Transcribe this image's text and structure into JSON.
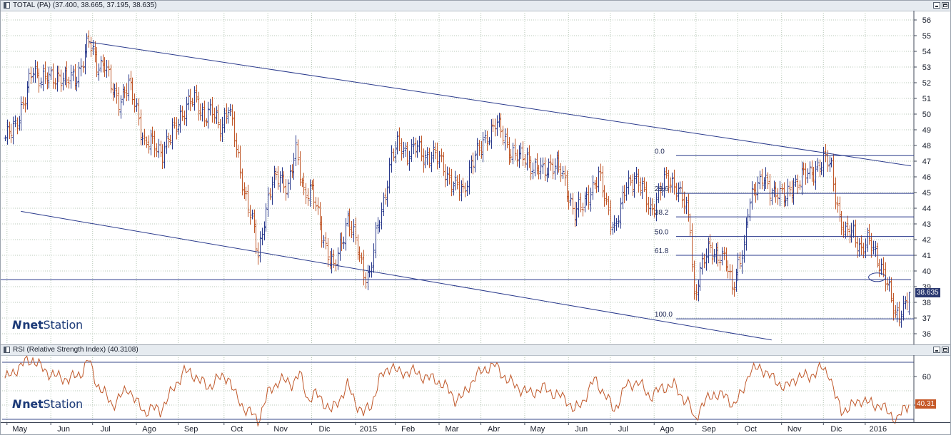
{
  "price_pane": {
    "title": "TOTAL (PA) (37.400, 38.665, 37.195, 38.635)",
    "last_price_label": "38.635",
    "logo": {
      "mark": "N",
      "strong": "net",
      "rest": "Station"
    }
  },
  "rsi_pane": {
    "title": "RSI (Relative Strength Index) (40.3108)",
    "last_value_label": "40.31",
    "logo": {
      "mark": "N",
      "strong": "net",
      "rest": "Station"
    }
  },
  "colors": {
    "up_bar": "#2a3a8c",
    "down_bar": "#c0582a",
    "trend_line": "#2a3a8c",
    "fib_line": "#2a3a8c",
    "rsi_line": "#c0582a",
    "grid": "#b8c8b8",
    "band_line": "#3a4a8a"
  },
  "chart_data": [
    {
      "type": "ohlc",
      "title": "TOTAL (PA)",
      "last_ohlc": {
        "open": 37.4,
        "high": 38.665,
        "low": 37.195,
        "close": 38.635
      },
      "ylim": [
        35.5,
        56.5
      ],
      "yticks": [
        36,
        37,
        38,
        39,
        40,
        41,
        42,
        43,
        44,
        45,
        46,
        47,
        48,
        49,
        50,
        51,
        52,
        53,
        54,
        55,
        56
      ],
      "grid": true,
      "x_labels": [
        "May",
        "Jun",
        "Jul",
        "Ago",
        "Sep",
        "Oct",
        "Nov",
        "Dic",
        "2015",
        "Feb",
        "Mar",
        "Abr",
        "May",
        "Jun",
        "Jul",
        "Ago",
        "Sep",
        "Oct",
        "Nov",
        "Dic",
        "2016"
      ],
      "x_label_index": [
        5,
        27,
        48,
        70,
        91,
        114,
        136,
        158,
        180,
        200,
        222,
        243,
        265,
        287,
        308,
        330,
        351,
        372,
        394,
        415,
        436
      ],
      "bars_total": 455,
      "close_anchors": [
        [
          0,
          48.2
        ],
        [
          5,
          49.5
        ],
        [
          10,
          50.8
        ],
        [
          14,
          53.0
        ],
        [
          18,
          52.3
        ],
        [
          22,
          52.1
        ],
        [
          27,
          52.6
        ],
        [
          31,
          52.0
        ],
        [
          36,
          52.5
        ],
        [
          42,
          54.5
        ],
        [
          46,
          53.3
        ],
        [
          50,
          53.2
        ],
        [
          53,
          51.6
        ],
        [
          57,
          51.0
        ],
        [
          62,
          51.7
        ],
        [
          66,
          50.4
        ],
        [
          70,
          48.1
        ],
        [
          75,
          48.0
        ],
        [
          79,
          47.7
        ],
        [
          83,
          48.4
        ],
        [
          88,
          50.0
        ],
        [
          92,
          50.6
        ],
        [
          96,
          50.9
        ],
        [
          100,
          49.9
        ],
        [
          104,
          50.0
        ],
        [
          108,
          49.3
        ],
        [
          112,
          50.4
        ],
        [
          116,
          47.8
        ],
        [
          120,
          45.2
        ],
        [
          124,
          43.0
        ],
        [
          127,
          41.0
        ],
        [
          130,
          43.5
        ],
        [
          134,
          45.5
        ],
        [
          138,
          46.1
        ],
        [
          142,
          45.4
        ],
        [
          146,
          47.5
        ],
        [
          150,
          45.2
        ],
        [
          154,
          45.0
        ],
        [
          158,
          43.0
        ],
        [
          162,
          41.2
        ],
        [
          165,
          40.0
        ],
        [
          168,
          41.5
        ],
        [
          172,
          43.5
        ],
        [
          176,
          41.7
        ],
        [
          180,
          40.0
        ],
        [
          183,
          39.8
        ],
        [
          186,
          42.0
        ],
        [
          190,
          44.5
        ],
        [
          194,
          47.3
        ],
        [
          198,
          48.0
        ],
        [
          202,
          47.6
        ],
        [
          206,
          47.8
        ],
        [
          210,
          47.3
        ],
        [
          214,
          47.5
        ],
        [
          218,
          47.0
        ],
        [
          222,
          46.2
        ],
        [
          226,
          45.3
        ],
        [
          230,
          45.0
        ],
        [
          234,
          47.0
        ],
        [
          238,
          47.5
        ],
        [
          242,
          48.7
        ],
        [
          246,
          49.4
        ],
        [
          250,
          48.6
        ],
        [
          254,
          47.7
        ],
        [
          258,
          47.1
        ],
        [
          262,
          47.3
        ],
        [
          266,
          46.5
        ],
        [
          270,
          46.2
        ],
        [
          274,
          47.0
        ],
        [
          278,
          46.5
        ],
        [
          282,
          45.2
        ],
        [
          286,
          43.8
        ],
        [
          290,
          44.0
        ],
        [
          294,
          45.3
        ],
        [
          298,
          46.0
        ],
        [
          302,
          44.2
        ],
        [
          306,
          42.8
        ],
        [
          309,
          43.8
        ],
        [
          312,
          45.5
        ],
        [
          316,
          46.1
        ],
        [
          320,
          45.0
        ],
        [
          324,
          44.0
        ],
        [
          328,
          44.8
        ],
        [
          332,
          45.8
        ],
        [
          336,
          45.7
        ],
        [
          340,
          44.5
        ],
        [
          344,
          43.0
        ],
        [
          346,
          38.4
        ],
        [
          348,
          39.5
        ],
        [
          350,
          40.2
        ],
        [
          354,
          41.6
        ],
        [
          358,
          41.0
        ],
        [
          362,
          40.4
        ],
        [
          365,
          39.1
        ],
        [
          368,
          40.5
        ],
        [
          371,
          41.2
        ],
        [
          373,
          43.8
        ],
        [
          376,
          45.5
        ],
        [
          380,
          45.8
        ],
        [
          384,
          45.0
        ],
        [
          388,
          45.3
        ],
        [
          392,
          44.4
        ],
        [
          396,
          45.6
        ],
        [
          400,
          46.1
        ],
        [
          404,
          46.0
        ],
        [
          408,
          46.8
        ],
        [
          412,
          47.0
        ],
        [
          415,
          46.5
        ],
        [
          417,
          45.0
        ],
        [
          419,
          43.5
        ],
        [
          422,
          42.2
        ],
        [
          426,
          42.5
        ],
        [
          430,
          41.4
        ],
        [
          434,
          41.8
        ],
        [
          438,
          41.0
        ],
        [
          441,
          39.9
        ],
        [
          444,
          38.5
        ],
        [
          447,
          37.3
        ],
        [
          450,
          37.6
        ],
        [
          452,
          37.8
        ],
        [
          454,
          38.635
        ]
      ],
      "trend_lines": [
        {
          "from": [
            42,
            54.6
          ],
          "to": [
            455,
            46.7
          ]
        },
        {
          "from": [
            8,
            43.8
          ],
          "to": [
            385,
            35.6
          ]
        },
        {
          "from": [
            -5,
            39.45
          ],
          "to": [
            455,
            39.45
          ]
        }
      ],
      "fibonacci": {
        "anchor_index_start": 337,
        "anchor_index_end": 455,
        "levels": [
          {
            "label": "0.0",
            "value": 47.35
          },
          {
            "label": "23.6",
            "value": 44.95
          },
          {
            "label": "38.2",
            "value": 43.45
          },
          {
            "label": "50.0",
            "value": 42.2
          },
          {
            "label": "61.8",
            "value": 41.0
          },
          {
            "label": "100.0",
            "value": 36.95
          }
        ]
      },
      "marker_circle": {
        "index": 438,
        "value": 39.6
      }
    },
    {
      "type": "line",
      "title": "RSI (Relative Strength Index)",
      "last_value": 40.3108,
      "ylim": [
        28,
        74
      ],
      "yticks": [
        40,
        50,
        60
      ],
      "tick_labels_shown": [
        "60",
        "40"
      ],
      "bands": [
        70,
        30
      ],
      "grid": true,
      "series": [
        {
          "anchors": [
            [
              0,
              58
            ],
            [
              5,
              64
            ],
            [
              10,
              70
            ],
            [
              14,
              72
            ],
            [
              20,
              64
            ],
            [
              26,
              60
            ],
            [
              32,
              58
            ],
            [
              38,
              62
            ],
            [
              42,
              72
            ],
            [
              46,
              55
            ],
            [
              50,
              48
            ],
            [
              54,
              40
            ],
            [
              58,
              46
            ],
            [
              62,
              52
            ],
            [
              66,
              42
            ],
            [
              70,
              35
            ],
            [
              74,
              38
            ],
            [
              78,
              36
            ],
            [
              84,
              50
            ],
            [
              90,
              64
            ],
            [
              96,
              60
            ],
            [
              102,
              52
            ],
            [
              106,
              58
            ],
            [
              112,
              60
            ],
            [
              116,
              46
            ],
            [
              120,
              38
            ],
            [
              124,
              34
            ],
            [
              127,
              29
            ],
            [
              132,
              48
            ],
            [
              138,
              58
            ],
            [
              144,
              55
            ],
            [
              148,
              62
            ],
            [
              152,
              44
            ],
            [
              156,
              48
            ],
            [
              160,
              42
            ],
            [
              164,
              36
            ],
            [
              168,
              44
            ],
            [
              172,
              54
            ],
            [
              176,
              42
            ],
            [
              180,
              34
            ],
            [
              184,
              40
            ],
            [
              188,
              58
            ],
            [
              194,
              68
            ],
            [
              198,
              62
            ],
            [
              204,
              64
            ],
            [
              210,
              60
            ],
            [
              216,
              58
            ],
            [
              222,
              52
            ],
            [
              226,
              44
            ],
            [
              230,
              46
            ],
            [
              236,
              60
            ],
            [
              242,
              66
            ],
            [
              246,
              68
            ],
            [
              252,
              58
            ],
            [
              258,
              52
            ],
            [
              264,
              48
            ],
            [
              270,
              52
            ],
            [
              276,
              48
            ],
            [
              282,
              44
            ],
            [
              286,
              36
            ],
            [
              290,
              42
            ],
            [
              296,
              58
            ],
            [
              302,
              46
            ],
            [
              306,
              36
            ],
            [
              312,
              54
            ],
            [
              318,
              56
            ],
            [
              324,
              46
            ],
            [
              330,
              52
            ],
            [
              336,
              54
            ],
            [
              340,
              46
            ],
            [
              344,
              40
            ],
            [
              346,
              29
            ],
            [
              350,
              40
            ],
            [
              356,
              48
            ],
            [
              362,
              46
            ],
            [
              366,
              40
            ],
            [
              370,
              48
            ],
            [
              374,
              64
            ],
            [
              380,
              66
            ],
            [
              386,
              58
            ],
            [
              392,
              52
            ],
            [
              398,
              60
            ],
            [
              404,
              60
            ],
            [
              410,
              66
            ],
            [
              414,
              62
            ],
            [
              417,
              46
            ],
            [
              420,
              36
            ],
            [
              424,
              38
            ],
            [
              430,
              44
            ],
            [
              436,
              40
            ],
            [
              440,
              40
            ],
            [
              444,
              34
            ],
            [
              448,
              30
            ],
            [
              451,
              36
            ],
            [
              454,
              40.31
            ]
          ]
        }
      ]
    }
  ]
}
